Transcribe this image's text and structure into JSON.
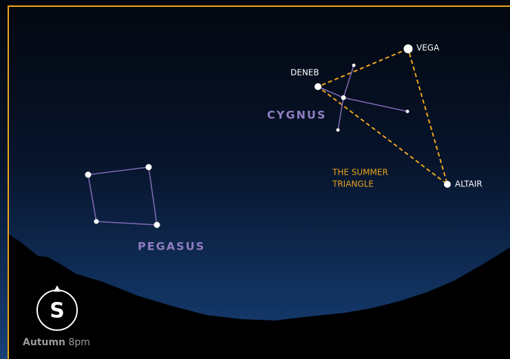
{
  "labels": {
    "vega": "VEGA",
    "deneb": "DENEB",
    "altair": "ALTAIR",
    "cygnus": "CYGNUS",
    "pegasus": "PEGASUS",
    "triangle": [
      "THE SUMMER",
      "TRIANGLE"
    ]
  },
  "compass": {
    "direction": "S",
    "season": "Autumn",
    "time": "8pm"
  }
}
